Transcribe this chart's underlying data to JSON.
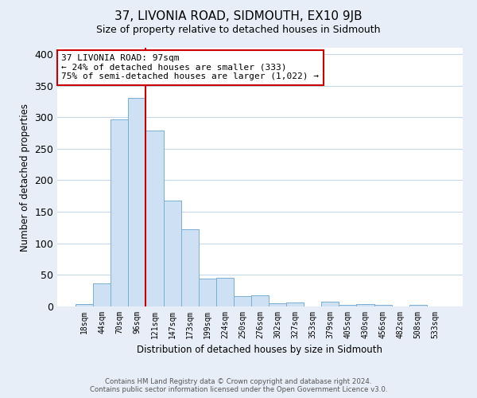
{
  "title": "37, LIVONIA ROAD, SIDMOUTH, EX10 9JB",
  "subtitle": "Size of property relative to detached houses in Sidmouth",
  "xlabel": "Distribution of detached houses by size in Sidmouth",
  "ylabel": "Number of detached properties",
  "bin_labels": [
    "18sqm",
    "44sqm",
    "70sqm",
    "96sqm",
    "121sqm",
    "147sqm",
    "173sqm",
    "199sqm",
    "224sqm",
    "250sqm",
    "276sqm",
    "302sqm",
    "327sqm",
    "353sqm",
    "379sqm",
    "405sqm",
    "430sqm",
    "456sqm",
    "482sqm",
    "508sqm",
    "533sqm"
  ],
  "bar_values": [
    4,
    37,
    297,
    330,
    279,
    168,
    122,
    44,
    46,
    16,
    18,
    5,
    6,
    0,
    7,
    3,
    4,
    2,
    0,
    3,
    0
  ],
  "bar_color": "#cde0f4",
  "bar_edge_color": "#7bafd4",
  "vline_x_index": 3,
  "vline_color": "#cc0000",
  "annotation_line1": "37 LIVONIA ROAD: 97sqm",
  "annotation_line2": "← 24% of detached houses are smaller (333)",
  "annotation_line3": "75% of semi-detached houses are larger (1,022) →",
  "annotation_box_facecolor": "#ffffff",
  "annotation_box_edgecolor": "#cc0000",
  "ylim": [
    0,
    410
  ],
  "yticks": [
    0,
    50,
    100,
    150,
    200,
    250,
    300,
    350,
    400
  ],
  "plot_bg_color": "#ffffff",
  "fig_bg_color": "#e8eef8",
  "footer_line1": "Contains HM Land Registry data © Crown copyright and database right 2024.",
  "footer_line2": "Contains public sector information licensed under the Open Government Licence v3.0.",
  "title_fontsize": 11,
  "subtitle_fontsize": 9
}
